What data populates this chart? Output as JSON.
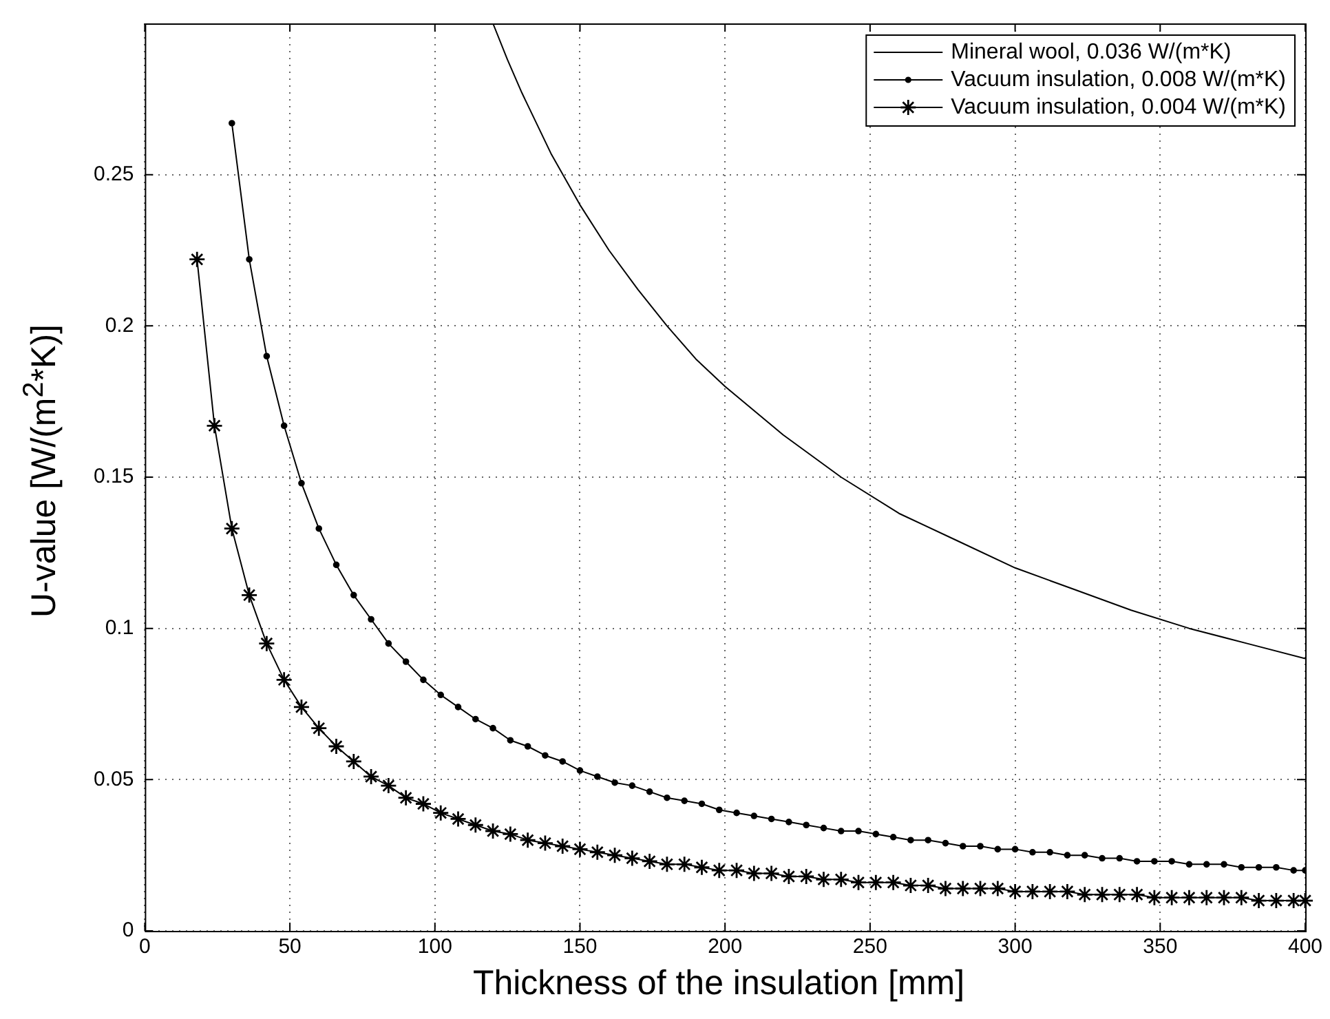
{
  "chart_data": {
    "type": "line",
    "xlabel": "Thickness of the insulation [mm]",
    "ylabel": "U-value [W/(m$^{2}$*K)]",
    "xlim": [
      0,
      400
    ],
    "xticks": [
      0,
      50,
      100,
      150,
      200,
      250,
      300,
      350,
      400
    ],
    "ylim": [
      0,
      0.3
    ],
    "yticks": [
      0,
      0.05,
      0.1,
      0.15,
      0.2,
      0.25
    ],
    "grid": true,
    "legend": "top right",
    "line_style": "solid",
    "series": [
      {
        "name": "Mineral wool, 0.036 W/(m*K)",
        "color": "#000000",
        "marker": "none",
        "x": [
          120,
          125,
          130,
          140,
          150,
          160,
          170,
          180,
          190,
          200,
          220,
          240,
          260,
          280,
          300,
          320,
          340,
          360,
          380,
          400
        ],
        "values": [
          0.3,
          0.288,
          0.277,
          0.257,
          0.24,
          0.225,
          0.212,
          0.2,
          0.189,
          0.18,
          0.164,
          0.15,
          0.138,
          0.129,
          0.12,
          0.113,
          0.106,
          0.1,
          0.095,
          0.09
        ]
      },
      {
        "name": "Vacuum insulation, 0.008 W/(m*K)",
        "color": "#000000",
        "marker": "circle",
        "x": [
          30,
          36,
          42,
          48,
          54,
          60,
          66,
          72,
          78,
          84,
          90,
          96,
          102,
          108,
          114,
          120,
          126,
          132,
          138,
          144,
          150,
          156,
          162,
          168,
          174,
          180,
          186,
          192,
          198,
          204,
          210,
          216,
          222,
          228,
          234,
          240,
          246,
          252,
          258,
          264,
          270,
          276,
          282,
          288,
          294,
          300,
          306,
          312,
          318,
          324,
          330,
          336,
          342,
          348,
          354,
          360,
          366,
          372,
          378,
          384,
          390,
          396,
          400
        ],
        "values": [
          0.267,
          0.222,
          0.19,
          0.167,
          0.148,
          0.133,
          0.121,
          0.111,
          0.103,
          0.095,
          0.089,
          0.083,
          0.078,
          0.074,
          0.07,
          0.067,
          0.063,
          0.061,
          0.058,
          0.056,
          0.053,
          0.051,
          0.049,
          0.048,
          0.046,
          0.044,
          0.043,
          0.042,
          0.04,
          0.039,
          0.038,
          0.037,
          0.036,
          0.035,
          0.034,
          0.033,
          0.033,
          0.032,
          0.031,
          0.03,
          0.03,
          0.029,
          0.028,
          0.028,
          0.027,
          0.027,
          0.026,
          0.026,
          0.025,
          0.025,
          0.024,
          0.024,
          0.023,
          0.023,
          0.023,
          0.022,
          0.022,
          0.022,
          0.021,
          0.021,
          0.021,
          0.02,
          0.02
        ]
      },
      {
        "name": "Vacuum insulation, 0.004 W/(m*K)",
        "color": "#000000",
        "marker": "star",
        "x": [
          18,
          24,
          30,
          36,
          42,
          48,
          54,
          60,
          66,
          72,
          78,
          84,
          90,
          96,
          102,
          108,
          114,
          120,
          126,
          132,
          138,
          144,
          150,
          156,
          162,
          168,
          174,
          180,
          186,
          192,
          198,
          204,
          210,
          216,
          222,
          228,
          234,
          240,
          246,
          252,
          258,
          264,
          270,
          276,
          282,
          288,
          294,
          300,
          306,
          312,
          318,
          324,
          330,
          336,
          342,
          348,
          354,
          360,
          366,
          372,
          378,
          384,
          390,
          396,
          400
        ],
        "values": [
          0.222,
          0.167,
          0.133,
          0.111,
          0.095,
          0.083,
          0.074,
          0.067,
          0.061,
          0.056,
          0.051,
          0.048,
          0.044,
          0.042,
          0.039,
          0.037,
          0.035,
          0.033,
          0.032,
          0.03,
          0.029,
          0.028,
          0.027,
          0.026,
          0.025,
          0.024,
          0.023,
          0.022,
          0.022,
          0.021,
          0.02,
          0.02,
          0.019,
          0.019,
          0.018,
          0.018,
          0.017,
          0.017,
          0.016,
          0.016,
          0.016,
          0.015,
          0.015,
          0.014,
          0.014,
          0.014,
          0.014,
          0.013,
          0.013,
          0.013,
          0.013,
          0.012,
          0.012,
          0.012,
          0.012,
          0.011,
          0.011,
          0.011,
          0.011,
          0.011,
          0.011,
          0.01,
          0.01,
          0.01,
          0.01
        ]
      }
    ]
  }
}
